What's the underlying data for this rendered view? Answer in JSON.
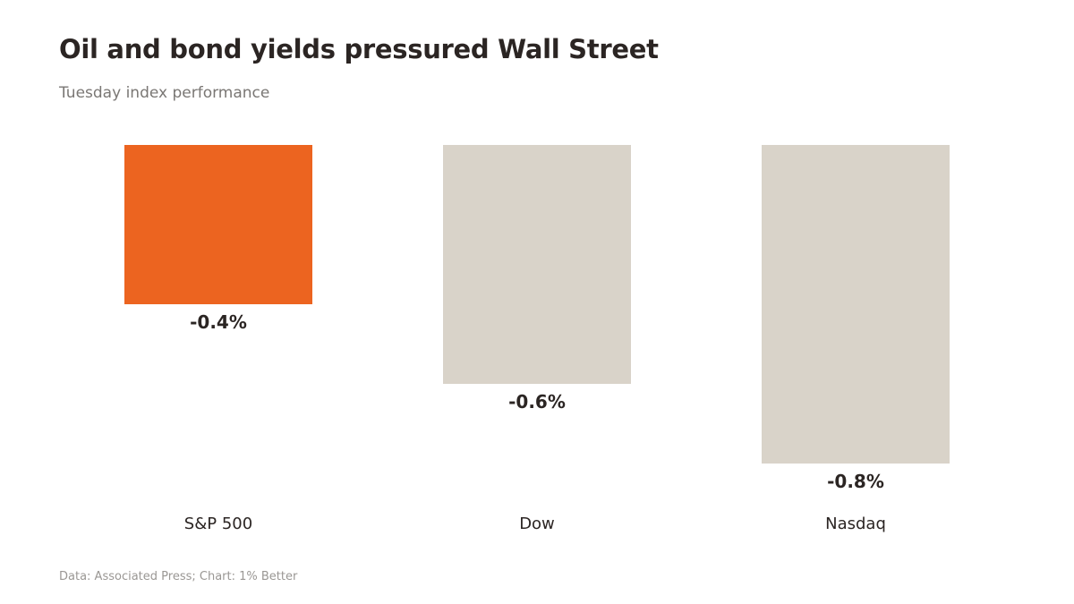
{
  "header": {
    "title": "Oil and bond yields pressured Wall Street",
    "subtitle": "Tuesday index performance"
  },
  "footer": {
    "source": "Data: Associated Press; Chart: 1% Better"
  },
  "colors": {
    "highlight": "#ec6420",
    "bar": "#d9d3c9",
    "value_text": "#2b2523",
    "category_text": "#2b2523"
  },
  "chart_data": {
    "type": "bar",
    "categories": [
      "S&P 500",
      "Dow",
      "Nasdaq"
    ],
    "values": [
      -0.4,
      -0.6,
      -0.8
    ],
    "value_labels": [
      "-0.4%",
      "-0.6%",
      "-0.8%"
    ],
    "highlighted_category": "S&P 500",
    "title": "Oil and bond yields pressured Wall Street",
    "subtitle": "Tuesday index performance",
    "xlabel": "",
    "ylabel": "",
    "ylim": [
      -0.8,
      0
    ],
    "grid": false,
    "legend": "none"
  }
}
